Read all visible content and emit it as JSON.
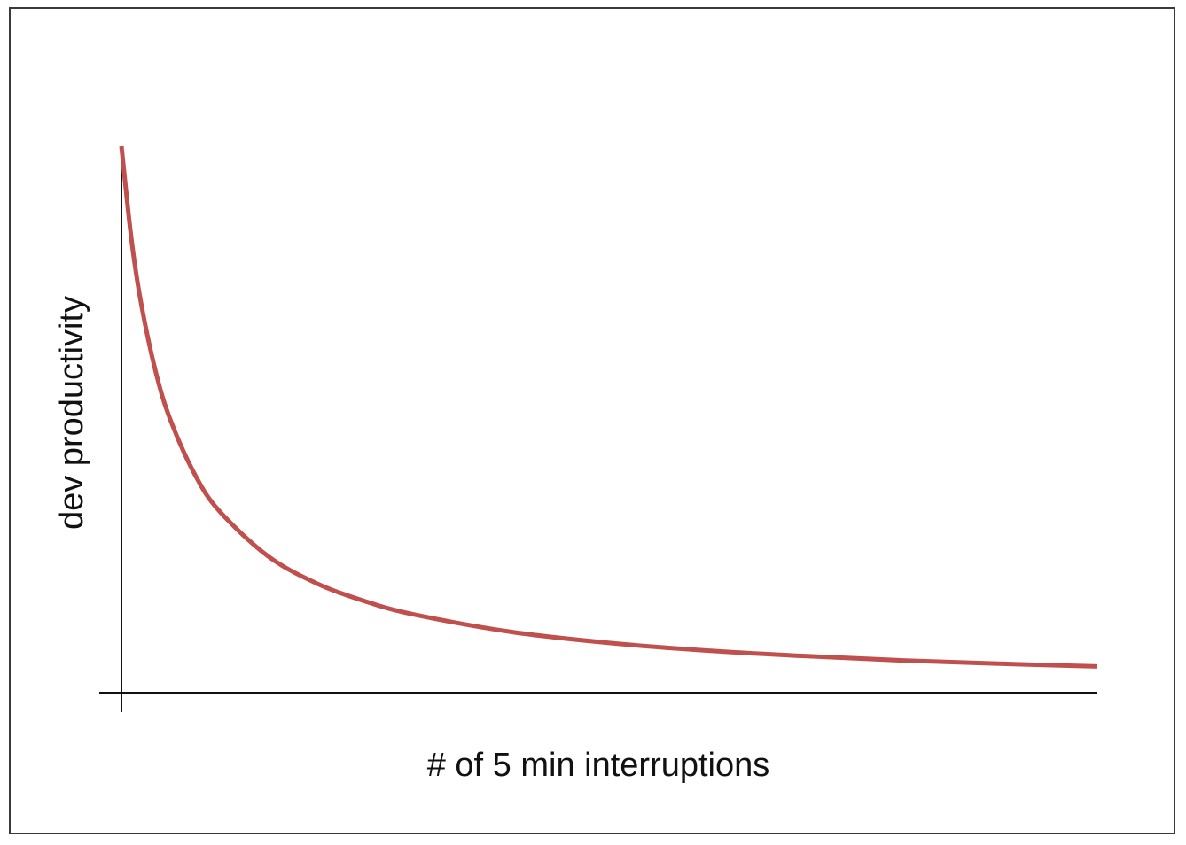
{
  "chart_data": {
    "type": "line",
    "title": "",
    "xlabel": "# of 5 min interruptions",
    "ylabel": "dev productivity",
    "x_tick_labels": [],
    "y_tick_labels": [],
    "grid": false,
    "legend": "none",
    "xlim": [
      0,
      10
    ],
    "ylim": [
      0,
      1
    ],
    "series": [
      {
        "color": "#c0504d",
        "x": [
          0,
          0.1,
          0.2,
          0.35,
          0.5,
          0.75,
          1.0,
          1.5,
          2.0,
          2.5,
          3.0,
          4.0,
          5.0,
          6.0,
          7.0,
          8.0,
          9.0,
          10.0
        ],
        "y": [
          1.0,
          0.833,
          0.714,
          0.588,
          0.5,
          0.4,
          0.333,
          0.25,
          0.2,
          0.167,
          0.143,
          0.111,
          0.091,
          0.077,
          0.067,
          0.059,
          0.053,
          0.048
        ]
      }
    ]
  }
}
